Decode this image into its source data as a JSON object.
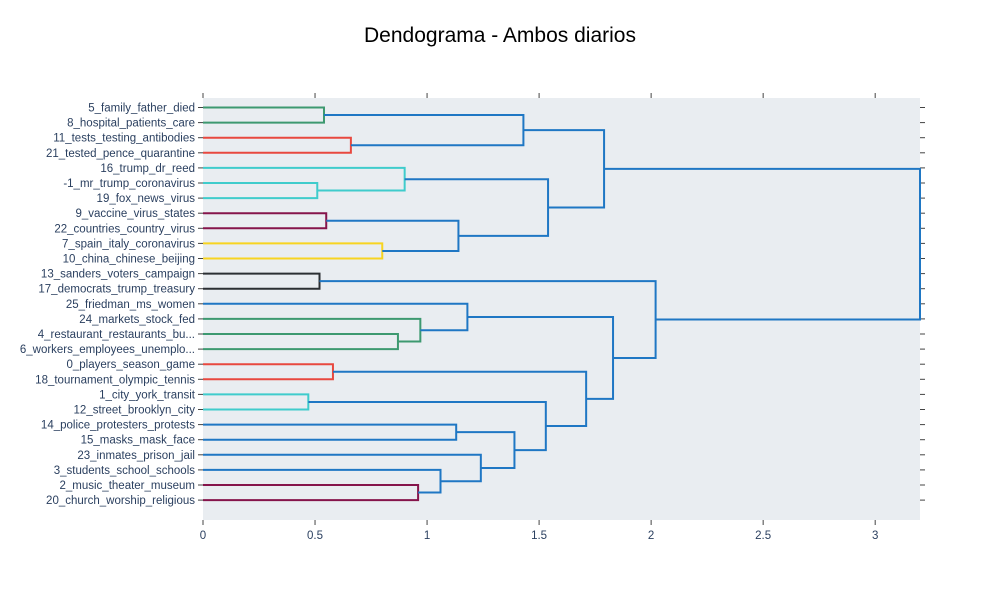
{
  "title": "Dendograma - Ambos diarios",
  "colors": {
    "plot_bg": "#e9edf1",
    "blue": "#1f77c4",
    "green": "#3d9970",
    "red": "#e8483f",
    "cyan": "#3fcccc",
    "maroon": "#85144b",
    "yellow": "#f7d421",
    "black": "#2b2f33",
    "tick_text": "#2a3f5f"
  },
  "chart_data": {
    "type": "dendrogram",
    "orientation": "horizontal",
    "title": "Dendograma - Ambos diarios",
    "xlim": [
      0,
      3.2
    ],
    "x_ticks": [
      "0",
      "0.5",
      "1",
      "1.5",
      "2",
      "2.5",
      "3"
    ],
    "x_tick_values": [
      0,
      0.5,
      1,
      1.5,
      2,
      2.5,
      3
    ],
    "grid": false,
    "leaves": [
      "5_family_father_died",
      "8_hospital_patients_care",
      "11_tests_testing_antibodies",
      "21_tested_pence_quarantine",
      "16_trump_dr_reed",
      "-1_mr_trump_coronavirus",
      "19_fox_news_virus",
      "9_vaccine_virus_states",
      "22_countries_country_virus",
      "7_spain_italy_coronavirus",
      "10_china_chinese_beijing",
      "13_sanders_voters_campaign",
      "17_democrats_trump_treasury",
      "25_friedman_ms_women",
      "24_markets_stock_fed",
      "4_restaurant_restaurants_bu...",
      "6_workers_employees_unemplo...",
      "0_players_season_game",
      "18_tournament_olympic_tennis",
      "1_city_york_transit",
      "12_street_brooklyn_city",
      "14_police_protesters_protests",
      "15_masks_mask_face",
      "23_inmates_prison_jail",
      "3_students_school_schools",
      "2_music_theater_museum",
      "20_church_worship_religious"
    ],
    "merges": [
      {
        "id": "A",
        "left": 0,
        "right": 1,
        "height": 0.54,
        "color": "green"
      },
      {
        "id": "B",
        "left": 2,
        "right": 3,
        "height": 0.66,
        "color": "red"
      },
      {
        "id": "C",
        "left": "A",
        "right": "B",
        "height": 1.43,
        "color": "blue"
      },
      {
        "id": "D",
        "left": 5,
        "right": 6,
        "height": 0.51,
        "color": "cyan"
      },
      {
        "id": "E",
        "left": 4,
        "right": "D",
        "height": 0.9,
        "color": "cyan"
      },
      {
        "id": "F",
        "left": 7,
        "right": 8,
        "height": 0.55,
        "color": "maroon"
      },
      {
        "id": "G",
        "left": 9,
        "right": 10,
        "height": 0.8,
        "color": "yellow"
      },
      {
        "id": "H",
        "left": "F",
        "right": "G",
        "height": 1.14,
        "color": "blue"
      },
      {
        "id": "I",
        "left": "E",
        "right": "H",
        "height": 1.54,
        "color": "blue"
      },
      {
        "id": "J",
        "left": "C",
        "right": "I",
        "height": 1.79,
        "color": "blue"
      },
      {
        "id": "K",
        "left": 11,
        "right": 12,
        "height": 0.52,
        "color": "black"
      },
      {
        "id": "L",
        "left": 15,
        "right": 16,
        "height": 0.87,
        "color": "green"
      },
      {
        "id": "M",
        "left": 14,
        "right": "L",
        "height": 0.97,
        "color": "green"
      },
      {
        "id": "N",
        "left": 13,
        "right": "M",
        "height": 1.18,
        "color": "blue"
      },
      {
        "id": "O",
        "left": 17,
        "right": 18,
        "height": 0.58,
        "color": "red"
      },
      {
        "id": "P",
        "left": 19,
        "right": 20,
        "height": 0.47,
        "color": "cyan"
      },
      {
        "id": "Q",
        "left": 21,
        "right": 22,
        "height": 1.13,
        "color": "blue"
      },
      {
        "id": "R",
        "left": 26,
        "right": 25,
        "height": 0.96,
        "color": "maroon"
      },
      {
        "id": "S",
        "left": 24,
        "right": "R",
        "height": 1.06,
        "color": "blue"
      },
      {
        "id": "T",
        "left": 23,
        "right": "S",
        "height": 1.24,
        "color": "blue"
      },
      {
        "id": "U",
        "left": "Q",
        "right": "T",
        "height": 1.39,
        "color": "blue"
      },
      {
        "id": "V",
        "left": "P",
        "right": "U",
        "height": 1.53,
        "color": "blue"
      },
      {
        "id": "W",
        "left": "O",
        "right": "V",
        "height": 1.71,
        "color": "blue"
      },
      {
        "id": "X",
        "left": "N",
        "right": "W",
        "height": 1.83,
        "color": "blue"
      },
      {
        "id": "Y",
        "left": "K",
        "right": "X",
        "height": 2.02,
        "color": "blue"
      },
      {
        "id": "Z",
        "left": "J",
        "right": "Y",
        "height": 3.2,
        "color": "blue"
      }
    ]
  }
}
